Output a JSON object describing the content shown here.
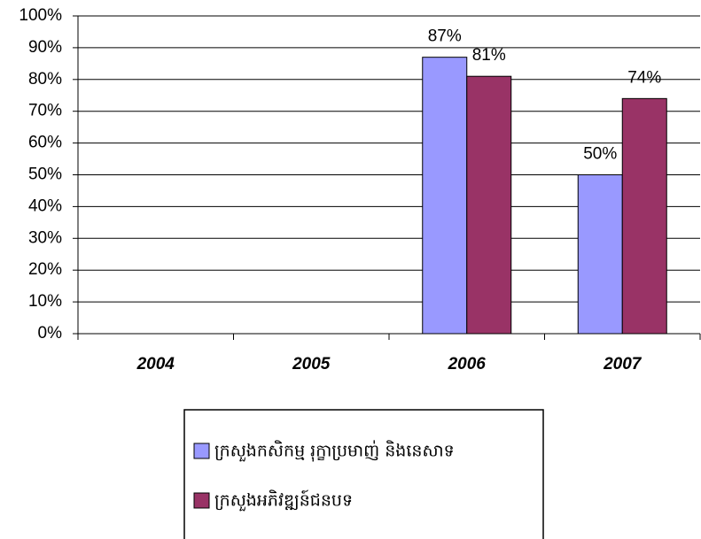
{
  "chart_data": {
    "type": "bar",
    "categories": [
      "2004",
      "2005",
      "2006",
      "2007"
    ],
    "series": [
      {
        "name": "ក្រសួងកសិកម្ម រុក្ខាប្រមាញ់ និងនេសាទ",
        "color": "#9999ff",
        "values": [
          null,
          null,
          87,
          50
        ],
        "value_labels": [
          null,
          null,
          "87%",
          "50%"
        ]
      },
      {
        "name": "ក្រសួងអភិវឌ្ឍន៍ជនបទ",
        "color": "#993366",
        "values": [
          null,
          null,
          81,
          74
        ],
        "value_labels": [
          null,
          null,
          "81%",
          "74%"
        ]
      }
    ],
    "ylim": [
      0,
      100
    ],
    "yticks": [
      {
        "value": 0,
        "label": "0%"
      },
      {
        "value": 10,
        "label": "10%"
      },
      {
        "value": 20,
        "label": "20%"
      },
      {
        "value": 30,
        "label": "30%"
      },
      {
        "value": 40,
        "label": "40%"
      },
      {
        "value": 50,
        "label": "50%"
      },
      {
        "value": 60,
        "label": "60%"
      },
      {
        "value": 70,
        "label": "70%"
      },
      {
        "value": 80,
        "label": "80%"
      },
      {
        "value": 90,
        "label": "90%"
      },
      {
        "value": 100,
        "label": "100%"
      }
    ],
    "grid": true
  }
}
